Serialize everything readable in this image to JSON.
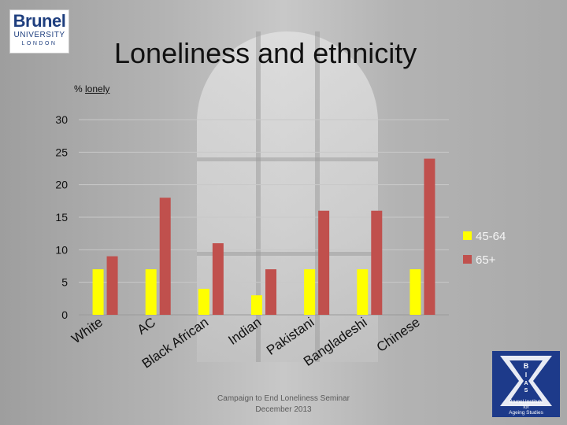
{
  "header": {
    "university_logo": {
      "line1": "Brunel",
      "line2": "UNIVERSITY",
      "line3": "LONDON"
    },
    "title": "Loneliness and ethnicity"
  },
  "chart_data": {
    "type": "bar",
    "title": "",
    "ylabel_prefix": "% ",
    "ylabel_underlined": "lonely",
    "xlabel": "",
    "categories": [
      "White",
      "AC",
      "Black African",
      "Indian",
      "Pakistani",
      "Bangladeshi",
      "Chinese"
    ],
    "series": [
      {
        "name": "45-64",
        "color": "#FFFF00",
        "values": [
          7,
          7,
          4,
          3,
          7,
          7,
          7
        ]
      },
      {
        "name": "65+",
        "color": "#C0504D",
        "values": [
          9,
          18,
          11,
          7,
          16,
          16,
          24
        ]
      }
    ],
    "ylim": [
      0,
      30
    ],
    "yticks": [
      "0",
      "5",
      "10",
      "15",
      "20",
      "25",
      "30"
    ],
    "grid": true,
    "legend_position": "right"
  },
  "footer": {
    "line1": "Campaign to End Loneliness Seminar",
    "line2": "December 2013"
  },
  "institute_logo": {
    "letters": [
      "B",
      "I",
      "A",
      "S"
    ],
    "line1": "Brunel Institute",
    "line2": "for",
    "line3": "Ageing Studies"
  }
}
